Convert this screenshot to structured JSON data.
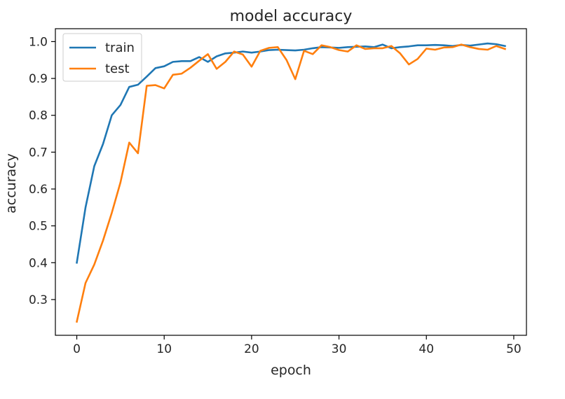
{
  "chart_data": {
    "type": "line",
    "title": "model accuracy",
    "xlabel": "epoch",
    "ylabel": "accuracy",
    "xlim": [
      -2.45,
      51.45
    ],
    "ylim": [
      0.203,
      1.035
    ],
    "xticks": [
      0,
      10,
      20,
      30,
      40,
      50
    ],
    "yticks": [
      0.3,
      0.4,
      0.5,
      0.6,
      0.7,
      0.8,
      0.9,
      1.0
    ],
    "ytick_labels": [
      "0.3",
      "0.4",
      "0.5",
      "0.6",
      "0.7",
      "0.8",
      "0.9",
      "1.0"
    ],
    "legend_position": "top-left",
    "grid": false,
    "x": [
      0,
      1,
      2,
      3,
      4,
      5,
      6,
      7,
      8,
      9,
      10,
      11,
      12,
      13,
      14,
      15,
      16,
      17,
      18,
      19,
      20,
      21,
      22,
      23,
      24,
      25,
      26,
      27,
      28,
      29,
      30,
      31,
      32,
      33,
      34,
      35,
      36,
      37,
      38,
      39,
      40,
      41,
      42,
      43,
      44,
      45,
      46,
      47,
      48,
      49
    ],
    "series": [
      {
        "name": "train",
        "color": "#1f77b4",
        "values": [
          0.4,
          0.55,
          0.662,
          0.722,
          0.8,
          0.828,
          0.877,
          0.883,
          0.905,
          0.928,
          0.933,
          0.945,
          0.947,
          0.947,
          0.958,
          0.945,
          0.96,
          0.968,
          0.97,
          0.973,
          0.97,
          0.973,
          0.977,
          0.978,
          0.977,
          0.976,
          0.978,
          0.982,
          0.985,
          0.984,
          0.983,
          0.985,
          0.986,
          0.987,
          0.985,
          0.992,
          0.982,
          0.985,
          0.987,
          0.99,
          0.99,
          0.991,
          0.99,
          0.988,
          0.991,
          0.989,
          0.992,
          0.995,
          0.993,
          0.988
        ]
      },
      {
        "name": "test",
        "color": "#ff7f0e",
        "values": [
          0.24,
          0.345,
          0.395,
          0.46,
          0.535,
          0.618,
          0.726,
          0.697,
          0.88,
          0.882,
          0.873,
          0.91,
          0.913,
          0.929,
          0.948,
          0.966,
          0.926,
          0.945,
          0.973,
          0.965,
          0.932,
          0.975,
          0.983,
          0.985,
          0.95,
          0.898,
          0.975,
          0.966,
          0.99,
          0.985,
          0.977,
          0.973,
          0.99,
          0.98,
          0.982,
          0.982,
          0.988,
          0.968,
          0.938,
          0.953,
          0.981,
          0.978,
          0.984,
          0.985,
          0.992,
          0.985,
          0.98,
          0.978,
          0.988,
          0.98
        ]
      }
    ]
  }
}
